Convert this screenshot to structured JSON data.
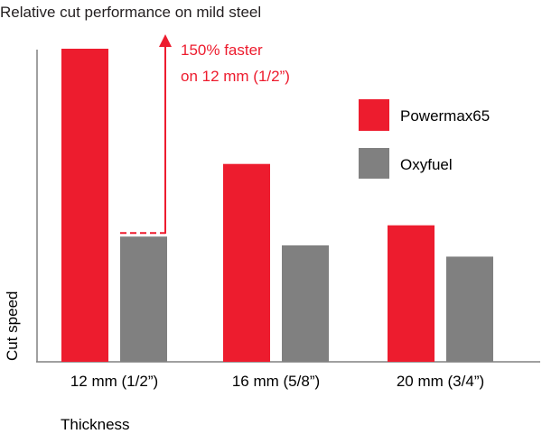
{
  "chart_data": {
    "type": "bar",
    "title": "Relative cut performance on mild steel",
    "xlabel": "Thickness",
    "ylabel": "Cut speed",
    "categories": [
      "12 mm (1/2”)",
      "16 mm (5/8”)",
      "20 mm (3/4”)"
    ],
    "series": [
      {
        "name": "Powermax65",
        "color": "#ed1c2e",
        "values": [
          2.5,
          1.58,
          1.09
        ]
      },
      {
        "name": "Oxyfuel",
        "color": "#808080",
        "values": [
          1.0,
          0.93,
          0.84
        ]
      }
    ],
    "ylim": [
      0,
      2.5
    ],
    "y_ticks_shown": false,
    "grid": false,
    "legend": "right",
    "annotation": {
      "line1": "150% faster",
      "line2": "on 12 mm (1/2”)",
      "color": "#ed1c2e"
    }
  }
}
